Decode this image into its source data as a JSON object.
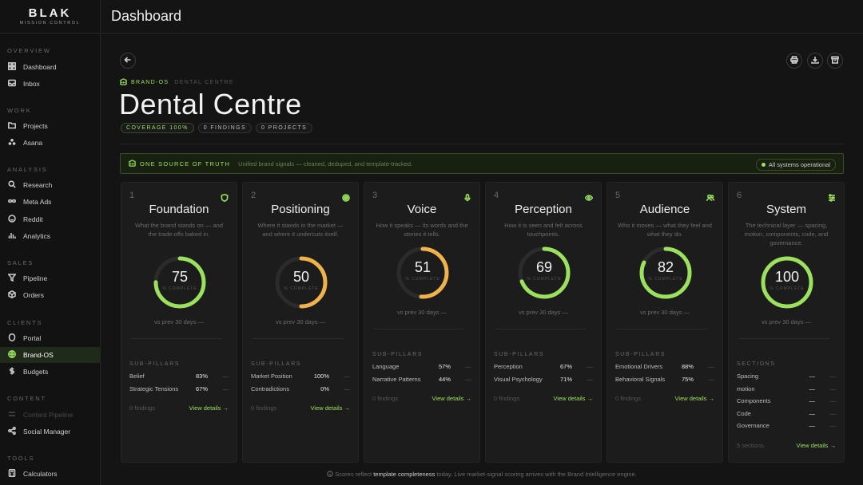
{
  "app": {
    "logo": "BLAK",
    "logo_sub": "MISSION CONTROL",
    "page_title": "Dashboard"
  },
  "sidebar": {
    "sections": [
      {
        "label": "OVERVIEW",
        "items": [
          {
            "label": "Dashboard",
            "icon": "grid-icon"
          },
          {
            "label": "Inbox",
            "icon": "inbox-icon"
          }
        ]
      },
      {
        "label": "WORK",
        "items": [
          {
            "label": "Projects",
            "icon": "folder-icon"
          },
          {
            "label": "Asana",
            "icon": "asana-icon"
          }
        ]
      },
      {
        "label": "ANALYSIS",
        "items": [
          {
            "label": "Research",
            "icon": "search-icon"
          },
          {
            "label": "Meta Ads",
            "icon": "infinity-icon"
          },
          {
            "label": "Reddit",
            "icon": "reddit-icon"
          },
          {
            "label": "Analytics",
            "icon": "bar-chart-icon"
          }
        ]
      },
      {
        "label": "SALES",
        "items": [
          {
            "label": "Pipeline",
            "icon": "funnel-icon"
          },
          {
            "label": "Orders",
            "icon": "box-icon"
          }
        ]
      },
      {
        "label": "CLIENTS",
        "items": [
          {
            "label": "Portal",
            "icon": "portal-icon"
          },
          {
            "label": "Brand-OS",
            "icon": "globe-icon",
            "active": true
          },
          {
            "label": "Budgets",
            "icon": "dollar-icon"
          }
        ]
      },
      {
        "label": "CONTENT",
        "items": [
          {
            "label": "Content Pipeline",
            "icon": "pipeline-icon",
            "dim": true
          },
          {
            "label": "Social Manager",
            "icon": "share-icon"
          }
        ]
      },
      {
        "label": "TOOLS",
        "items": [
          {
            "label": "Calculators",
            "icon": "calculator-icon"
          }
        ]
      }
    ]
  },
  "breadcrumb": {
    "section": "BRAND-OS",
    "page": "DENTAL CENTRE"
  },
  "header": {
    "title": "Dental Centre",
    "pills": [
      "COVERAGE 100%",
      "0 FINDINGS",
      "0 PROJECTS"
    ]
  },
  "banner": {
    "title": "ONE SOURCE OF TRUTH",
    "desc": "Unified brand signals — cleaned, deduped, and template-tracked.",
    "status": "All systems operational"
  },
  "complete_label": "% COMPLETE",
  "pillars": [
    {
      "num": "1",
      "title": "Foundation",
      "icon": "shield-icon",
      "desc": "What the brand stands on — and the trade-offs baked in.",
      "score": 75,
      "score_label": "75",
      "vs": "vs prev 30 days —",
      "sub_label": "SUB-PILLARS",
      "rows": [
        {
          "name": "Belief",
          "value": "83%",
          "delta": "—"
        },
        {
          "name": "Strategic Tensions",
          "value": "67%",
          "delta": "—"
        }
      ],
      "findings": "0 findings",
      "link": "View details →",
      "color": "#9be15d"
    },
    {
      "num": "2",
      "title": "Positioning",
      "icon": "target-icon",
      "desc": "Where it stands in the market — and where it undercuts itself.",
      "score": 50,
      "score_label": "50",
      "vs": "vs prev 30 days —",
      "sub_label": "SUB-PILLARS",
      "rows": [
        {
          "name": "Market Position",
          "value": "100%",
          "delta": "—"
        },
        {
          "name": "Contradictions",
          "value": "0%",
          "delta": "—"
        }
      ],
      "findings": "0 findings",
      "link": "View details →",
      "color": "#f0b24a"
    },
    {
      "num": "3",
      "title": "Voice",
      "icon": "mic-icon",
      "desc": "How it speaks — its words and the stories it tells.",
      "score": 51,
      "score_label": "51",
      "vs": "vs prev 30 days —",
      "sub_label": "SUB-PILLARS",
      "rows": [
        {
          "name": "Language",
          "value": "57%",
          "delta": "—"
        },
        {
          "name": "Narrative Patterns",
          "value": "44%",
          "delta": "—"
        }
      ],
      "findings": "0 findings",
      "link": "View details →",
      "color": "#f0b24a"
    },
    {
      "num": "4",
      "title": "Perception",
      "icon": "eye-icon",
      "desc": "How it is seen and felt across touchpoints.",
      "score": 69,
      "score_label": "69",
      "vs": "vs prev 30 days —",
      "sub_label": "SUB-PILLARS",
      "rows": [
        {
          "name": "Perception",
          "value": "67%",
          "delta": "—"
        },
        {
          "name": "Visual Psychology",
          "value": "71%",
          "delta": "—"
        }
      ],
      "findings": "0 findings",
      "link": "View details →",
      "color": "#9be15d"
    },
    {
      "num": "5",
      "title": "Audience",
      "icon": "users-icon",
      "desc": "Who it moves — what they feel and what they do.",
      "score": 82,
      "score_label": "82",
      "vs": "vs prev 30 days —",
      "sub_label": "SUB-PILLARS",
      "rows": [
        {
          "name": "Emotional Drivers",
          "value": "88%",
          "delta": "—"
        },
        {
          "name": "Behavioral Signals",
          "value": "75%",
          "delta": "—"
        }
      ],
      "findings": "0 findings",
      "link": "View details →",
      "color": "#9be15d"
    },
    {
      "num": "6",
      "title": "System",
      "icon": "sliders-icon",
      "desc": "The technical layer — spacing, motion, components, code, and governance.",
      "score": 100,
      "score_label": "100",
      "vs": "vs prev 30 days —",
      "sub_label": "SECTIONS",
      "rows": [
        {
          "name": "Spacing",
          "value": "—",
          "delta": "—"
        },
        {
          "name": "motion",
          "value": "—",
          "delta": "—"
        },
        {
          "name": "Components",
          "value": "—",
          "delta": "—"
        },
        {
          "name": "Code",
          "value": "—",
          "delta": "—"
        },
        {
          "name": "Governance",
          "value": "—",
          "delta": "—"
        }
      ],
      "findings": "5 sections",
      "link": "View details →",
      "color": "#9be15d"
    }
  ],
  "footer_note": {
    "pre": "Scores reflect",
    "bold": "template completeness",
    "post": "today. Live market-signal scoring arrives with the Brand Intelligence engine."
  },
  "colors": {
    "accent": "#9be15d",
    "warning": "#f0b24a",
    "background": "#141414",
    "card": "#1c1c1c"
  }
}
